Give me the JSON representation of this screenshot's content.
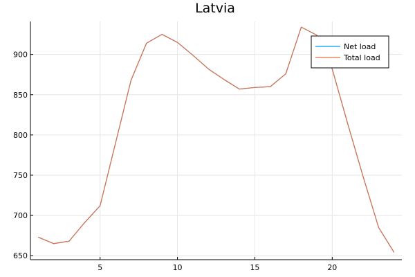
{
  "chart_data": {
    "type": "line",
    "title": "Latvia",
    "xlabel": "",
    "ylabel": "",
    "xlim": [
      0.5,
      24.5
    ],
    "ylim": [
      645,
      941
    ],
    "x_ticks": [
      5,
      10,
      15,
      20
    ],
    "y_ticks": [
      650,
      700,
      750,
      800,
      850,
      900
    ],
    "grid": true,
    "legend_position": "top-right",
    "x": [
      1,
      2,
      3,
      4,
      5,
      6,
      7,
      8,
      9,
      10,
      11,
      12,
      13,
      14,
      15,
      16,
      17,
      18,
      19,
      20,
      21,
      22,
      23,
      24
    ],
    "series": [
      {
        "name": "Net load",
        "color": "#009AFA",
        "values": [
          673,
          665,
          668,
          691,
          712,
          790,
          868,
          914,
          925,
          915,
          899,
          882,
          869,
          857,
          859,
          860,
          876,
          934,
          924,
          882,
          814,
          748,
          685,
          654
        ]
      },
      {
        "name": "Total load",
        "color": "#E26F46",
        "values": [
          673,
          665,
          668,
          691,
          712,
          790,
          868,
          914,
          925,
          915,
          899,
          882,
          869,
          857,
          859,
          860,
          876,
          934,
          924,
          882,
          814,
          748,
          685,
          654
        ]
      }
    ]
  }
}
